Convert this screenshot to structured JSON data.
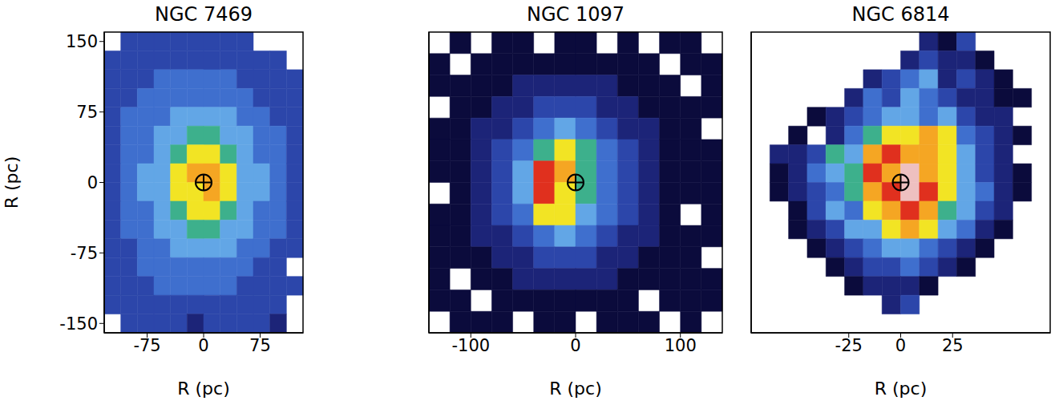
{
  "chart_data": [
    {
      "type": "heatmap",
      "title": "NGC 7469",
      "x_label": "R (pc)",
      "y_label": "R (pc)",
      "xlim": [
        -132,
        132
      ],
      "ylim": [
        -160,
        160
      ],
      "xticks": [
        -75,
        0,
        75
      ],
      "yticks": [
        -150,
        -75,
        0,
        75,
        150
      ],
      "x": [
        -121,
        -99,
        -77,
        -55,
        -33,
        -11,
        11,
        33,
        55,
        77,
        99,
        121
      ],
      "y": [
        150,
        130,
        110,
        90,
        70,
        50,
        30,
        10,
        -10,
        -30,
        -50,
        -70,
        -90,
        -110,
        -130,
        -150
      ],
      "cells": [
        [
          null,
          3,
          3,
          3,
          3,
          3,
          3,
          3,
          3,
          null,
          null,
          null
        ],
        [
          3,
          3,
          3,
          3,
          3,
          3,
          3,
          3,
          3,
          3,
          3,
          null
        ],
        [
          3,
          3,
          3,
          4,
          4,
          4,
          4,
          4,
          3,
          3,
          3,
          3
        ],
        [
          3,
          3,
          4,
          4,
          4,
          4,
          4,
          4,
          4,
          3,
          3,
          3
        ],
        [
          3,
          4,
          4,
          4,
          5,
          5,
          5,
          5,
          4,
          4,
          3,
          3
        ],
        [
          3,
          4,
          4,
          5,
          5,
          6,
          6,
          5,
          5,
          4,
          4,
          3
        ],
        [
          3,
          4,
          4,
          5,
          6,
          7,
          7,
          6,
          5,
          4,
          4,
          3
        ],
        [
          3,
          4,
          5,
          5,
          7,
          8,
          8,
          7,
          5,
          5,
          4,
          3
        ],
        [
          3,
          4,
          5,
          5,
          7,
          7,
          8,
          7,
          5,
          5,
          4,
          3
        ],
        [
          3,
          4,
          4,
          5,
          6,
          7,
          7,
          6,
          5,
          4,
          4,
          3
        ],
        [
          3,
          4,
          4,
          5,
          5,
          6,
          6,
          5,
          5,
          4,
          4,
          3
        ],
        [
          3,
          3,
          4,
          4,
          5,
          5,
          5,
          5,
          4,
          4,
          3,
          3
        ],
        [
          3,
          3,
          4,
          4,
          4,
          4,
          4,
          4,
          4,
          3,
          3,
          null
        ],
        [
          3,
          3,
          3,
          4,
          4,
          4,
          4,
          4,
          3,
          3,
          3,
          3
        ],
        [
          3,
          3,
          3,
          3,
          3,
          3,
          3,
          3,
          3,
          3,
          3,
          null
        ],
        [
          null,
          3,
          3,
          3,
          3,
          2,
          3,
          3,
          3,
          3,
          2,
          null
        ]
      ],
      "nucleus": {
        "x": 0,
        "y": 0,
        "marker": "circled_plus"
      }
    },
    {
      "type": "heatmap",
      "title": "NGC 1097",
      "x_label": "R (pc)",
      "tick_labels": "x",
      "xlim": [
        -140,
        140
      ],
      "ylim": [
        -140,
        140
      ],
      "xticks": [
        -100,
        0,
        100
      ],
      "x": [
        -130,
        -110,
        -90,
        -70,
        -50,
        -30,
        -10,
        10,
        30,
        50,
        70,
        90,
        110,
        130
      ],
      "y": [
        130,
        110,
        90,
        70,
        50,
        30,
        10,
        -10,
        -30,
        -50,
        -70,
        -90,
        -110,
        -130
      ],
      "cells": [
        [
          null,
          1,
          null,
          1,
          1,
          null,
          1,
          1,
          null,
          1,
          null,
          1,
          1,
          null
        ],
        [
          1,
          null,
          1,
          1,
          1,
          1,
          1,
          1,
          1,
          1,
          1,
          null,
          1,
          1
        ],
        [
          1,
          1,
          1,
          1,
          2,
          2,
          2,
          2,
          2,
          1,
          1,
          1,
          null,
          1
        ],
        [
          null,
          1,
          1,
          2,
          2,
          3,
          3,
          3,
          2,
          2,
          1,
          1,
          1,
          1
        ],
        [
          1,
          1,
          2,
          2,
          3,
          4,
          5,
          4,
          3,
          2,
          2,
          1,
          1,
          null
        ],
        [
          1,
          1,
          2,
          3,
          4,
          6,
          7,
          6,
          4,
          3,
          2,
          1,
          1,
          1
        ],
        [
          1,
          1,
          2,
          3,
          5,
          9,
          8,
          6,
          4,
          3,
          2,
          1,
          1,
          1
        ],
        [
          null,
          1,
          2,
          3,
          5,
          9,
          7,
          6,
          4,
          3,
          2,
          1,
          1,
          1
        ],
        [
          1,
          1,
          2,
          3,
          4,
          7,
          7,
          5,
          4,
          3,
          2,
          1,
          null,
          1
        ],
        [
          1,
          1,
          2,
          2,
          3,
          4,
          5,
          4,
          3,
          2,
          2,
          1,
          1,
          1
        ],
        [
          1,
          1,
          1,
          2,
          2,
          3,
          3,
          3,
          2,
          2,
          1,
          1,
          1,
          null
        ],
        [
          1,
          null,
          1,
          1,
          2,
          2,
          2,
          2,
          2,
          1,
          1,
          1,
          1,
          1
        ],
        [
          1,
          1,
          null,
          1,
          1,
          1,
          1,
          1,
          1,
          1,
          null,
          1,
          1,
          1
        ],
        [
          null,
          1,
          1,
          1,
          null,
          1,
          1,
          null,
          1,
          1,
          1,
          null,
          1,
          null
        ]
      ],
      "nucleus": {
        "x": 0,
        "y": 0,
        "marker": "circled_plus"
      }
    },
    {
      "type": "heatmap",
      "title": "NGC 6814",
      "x_label": "R (pc)",
      "tick_labels": "x",
      "xlim": [
        -72,
        72
      ],
      "ylim": [
        -72,
        72
      ],
      "xticks": [
        -25,
        0,
        25
      ],
      "x": [
        -67.5,
        -58.5,
        -49.5,
        -40.5,
        -31.5,
        -22.5,
        -13.5,
        -4.5,
        4.5,
        13.5,
        22.5,
        31.5,
        40.5,
        49.5,
        58.5,
        67.5
      ],
      "y": [
        67.5,
        58.5,
        49.5,
        40.5,
        31.5,
        22.5,
        13.5,
        4.5,
        -4.5,
        -13.5,
        -22.5,
        -31.5,
        -40.5,
        -49.5,
        -58.5,
        -67.5
      ],
      "cells": [
        [
          null,
          null,
          null,
          null,
          null,
          null,
          null,
          null,
          null,
          2,
          1,
          3,
          null,
          null,
          null,
          null
        ],
        [
          null,
          null,
          null,
          null,
          null,
          null,
          null,
          null,
          2,
          3,
          2,
          2,
          1,
          null,
          null,
          null
        ],
        [
          null,
          null,
          null,
          null,
          null,
          null,
          2,
          3,
          4,
          5,
          2,
          3,
          2,
          1,
          null,
          null
        ],
        [
          null,
          null,
          null,
          null,
          null,
          2,
          4,
          3,
          5,
          4,
          3,
          2,
          2,
          1,
          1,
          null
        ],
        [
          null,
          null,
          null,
          1,
          2,
          3,
          4,
          5,
          5,
          4,
          5,
          3,
          2,
          2,
          null,
          null
        ],
        [
          null,
          null,
          1,
          null,
          2,
          4,
          6,
          7,
          7,
          8,
          7,
          4,
          3,
          2,
          1,
          null
        ],
        [
          null,
          2,
          2,
          3,
          6,
          5,
          8,
          9,
          8,
          8,
          7,
          5,
          3,
          2,
          null,
          null
        ],
        [
          null,
          1,
          2,
          4,
          5,
          6,
          9,
          8,
          10,
          8,
          7,
          5,
          3,
          2,
          1,
          null
        ],
        [
          null,
          1,
          2,
          3,
          4,
          6,
          8,
          9,
          10,
          9,
          7,
          5,
          4,
          2,
          1,
          null
        ],
        [
          null,
          null,
          1,
          3,
          5,
          4,
          7,
          8,
          9,
          8,
          6,
          5,
          3,
          2,
          null,
          null
        ],
        [
          null,
          null,
          1,
          2,
          3,
          5,
          5,
          7,
          8,
          7,
          5,
          4,
          2,
          1,
          null,
          null
        ],
        [
          null,
          null,
          null,
          1,
          2,
          3,
          4,
          5,
          5,
          4,
          3,
          2,
          1,
          null,
          null,
          null
        ],
        [
          null,
          null,
          null,
          null,
          1,
          2,
          3,
          3,
          4,
          3,
          2,
          1,
          null,
          null,
          null,
          null
        ],
        [
          null,
          null,
          null,
          null,
          null,
          1,
          2,
          2,
          2,
          1,
          null,
          null,
          null,
          null,
          null,
          null
        ],
        [
          null,
          null,
          null,
          null,
          null,
          null,
          null,
          2,
          3,
          null,
          null,
          null,
          null,
          null,
          null,
          null
        ],
        [
          null,
          null,
          null,
          null,
          null,
          null,
          null,
          null,
          null,
          null,
          null,
          null,
          null,
          null,
          null,
          null
        ]
      ],
      "nucleus": {
        "x": 0,
        "y": 0,
        "marker": "circled_plus"
      }
    }
  ]
}
